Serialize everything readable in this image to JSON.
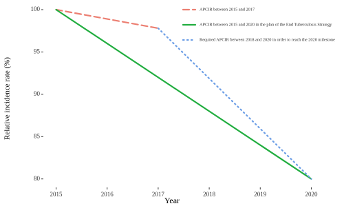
{
  "chart_data": {
    "type": "line",
    "x_label": "Year",
    "y_label": "Relative incidence rate (%)",
    "xlim": [
      2014.75,
      2020.25
    ],
    "xticks": [
      2015,
      2016,
      2017,
      2018,
      2019,
      2020
    ],
    "ylim": [
      79,
      101
    ],
    "yticks": [
      80,
      85,
      90,
      95,
      100
    ],
    "legend": "top-right",
    "series": [
      {
        "name": "APCIR between 2015 and 2017",
        "color": "#ec7f72",
        "linestyle": "dashed",
        "x": [
          2015,
          2017
        ],
        "values": [
          100,
          97.8
        ]
      },
      {
        "name": "APCIR between 2015 and 2020 in the plan of the End Tuberculosis Strategy",
        "color": "#21ad3f",
        "linestyle": "solid",
        "x": [
          2015,
          2020
        ],
        "values": [
          100,
          80
        ]
      },
      {
        "name": "Required APCIR between 2018 and 2020 in order to reach the 2020 milestone",
        "color": "#6c9ee6",
        "linestyle": "dotted",
        "x": [
          2017,
          2020
        ],
        "values": [
          97.8,
          80
        ]
      }
    ]
  }
}
